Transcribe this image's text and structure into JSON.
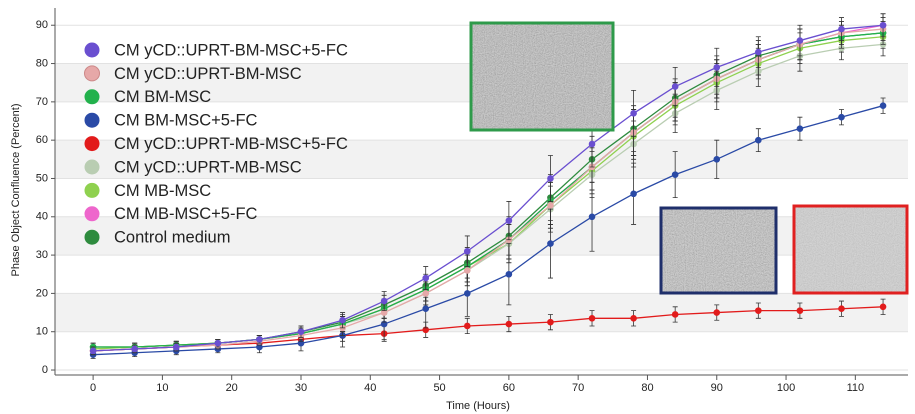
{
  "chart_data": {
    "type": "line",
    "xlabel": "Time (Hours)",
    "ylabel": "Phase Object Confluence (Percent)",
    "x": [
      0,
      6,
      12,
      18,
      24,
      30,
      36,
      42,
      48,
      54,
      60,
      66,
      72,
      78,
      84,
      90,
      96,
      102,
      108,
      114
    ],
    "xlim": [
      -5.5,
      117.6
    ],
    "xticks": [
      0,
      10,
      20,
      30,
      40,
      50,
      60,
      70,
      80,
      90,
      100,
      110
    ],
    "ylim": [
      -1.3,
      94.5
    ],
    "yticks": [
      0,
      10,
      20,
      30,
      40,
      50,
      60,
      70,
      80,
      90
    ],
    "grid": true,
    "legend": "upper left",
    "series": [
      {
        "name": "CM yCD::UPRT-BM-MSC+5-FC",
        "color": "#6a4fd0",
        "values": [
          5,
          5.5,
          6,
          7,
          8,
          10,
          13,
          18,
          24,
          31,
          39,
          50,
          59,
          67,
          74,
          79,
          83,
          86,
          89,
          90
        ],
        "errors": [
          1,
          1,
          1,
          1,
          1,
          1.5,
          2,
          2.5,
          3,
          4,
          5,
          6,
          6,
          6,
          5,
          5,
          4,
          4,
          3,
          3
        ]
      },
      {
        "name": "CM yCD::UPRT-BM-MSC",
        "color": "#e6a8a8",
        "values": [
          5,
          5.5,
          6,
          6.5,
          7.5,
          9,
          11,
          15,
          20,
          26,
          34,
          43,
          53,
          62,
          70,
          76,
          81,
          85,
          88,
          89
        ],
        "errors": [
          1,
          1,
          1,
          1,
          1,
          1.5,
          2,
          2.5,
          3,
          4,
          5,
          6,
          6,
          6,
          5,
          5,
          4,
          4,
          3,
          3
        ]
      },
      {
        "name": "CM BM-MSC",
        "color": "#22b14c",
        "values": [
          6,
          6,
          6.5,
          7,
          8,
          9.5,
          12,
          16,
          21,
          27,
          34,
          44,
          53,
          62,
          70,
          76,
          81,
          85,
          87,
          88
        ],
        "errors": [
          1,
          1,
          1,
          1,
          1,
          1.5,
          2,
          2.5,
          3,
          4,
          5,
          6,
          6,
          6,
          5,
          5,
          4,
          4,
          3,
          3
        ]
      },
      {
        "name": "CM BM-MSC+5-FC",
        "color": "#2a4aa6",
        "values": [
          4,
          4.5,
          5,
          5.5,
          6,
          7,
          9,
          12,
          16,
          20,
          25,
          33,
          40,
          46,
          51,
          55,
          60,
          63,
          66,
          69
        ],
        "errors": [
          1,
          1,
          1,
          1,
          1.5,
          2,
          3,
          4,
          5,
          6,
          8,
          9,
          9,
          8,
          6,
          5,
          3,
          3,
          2,
          2
        ]
      },
      {
        "name": "CM yCD::UPRT-MB-MSC+5-FC",
        "color": "#e21b1b",
        "values": [
          5,
          5.5,
          6,
          6.5,
          7,
          8,
          9,
          9.5,
          10.5,
          11.5,
          12,
          12.5,
          13.5,
          13.5,
          14.5,
          15,
          15.5,
          15.5,
          16,
          16.5
        ],
        "errors": [
          1,
          1,
          1,
          1,
          1,
          1.5,
          1.5,
          2,
          2,
          2,
          2,
          2,
          2,
          2,
          2,
          2,
          2,
          2,
          2,
          2
        ]
      },
      {
        "name": "CM yCD::UPRT-MB-MSC",
        "color": "#b9cdb2",
        "values": [
          5,
          5.5,
          6,
          7,
          8,
          9.5,
          12,
          15,
          20,
          26,
          33,
          42,
          51,
          59,
          67,
          73,
          78,
          82,
          84,
          85
        ],
        "errors": [
          1,
          1,
          1,
          1,
          1,
          1.5,
          2,
          2.5,
          3,
          4,
          5,
          6,
          6,
          6,
          5,
          5,
          4,
          4,
          3,
          3
        ]
      },
      {
        "name": "CM MB-MSC",
        "color": "#8fd14f",
        "values": [
          5.5,
          6,
          6.5,
          7,
          8,
          9.5,
          12,
          16,
          21,
          27,
          33,
          43,
          52,
          61,
          69,
          75,
          80,
          84,
          86,
          87
        ],
        "errors": [
          1,
          1,
          1,
          1,
          1,
          1.5,
          2,
          2.5,
          3,
          4,
          5,
          6,
          6,
          6,
          5,
          5,
          4,
          4,
          3,
          3
        ]
      },
      {
        "name": "CM MB-MSC+5-FC",
        "color": "#ee66cc",
        "values": [
          5,
          5.5,
          6,
          7,
          8,
          9.5,
          12,
          16,
          21,
          27,
          34,
          44,
          53,
          62,
          70,
          76,
          81,
          85,
          88,
          90
        ],
        "errors": [
          1,
          1,
          1,
          1,
          1,
          1.5,
          2,
          2.5,
          3,
          4,
          5,
          6,
          6,
          6,
          5,
          5,
          4,
          4,
          3,
          3
        ]
      },
      {
        "name": "Control medium",
        "color": "#2e8b3e",
        "values": [
          6,
          6,
          6.5,
          7,
          8,
          10,
          12.5,
          17,
          22,
          28,
          35,
          45,
          55,
          63,
          71,
          77,
          82,
          85,
          87,
          88
        ],
        "errors": [
          1,
          1,
          1,
          1,
          1,
          1.5,
          2,
          2.5,
          3,
          4,
          5,
          6,
          6,
          6,
          5,
          5,
          4,
          4,
          3,
          3
        ]
      }
    ]
  }
}
